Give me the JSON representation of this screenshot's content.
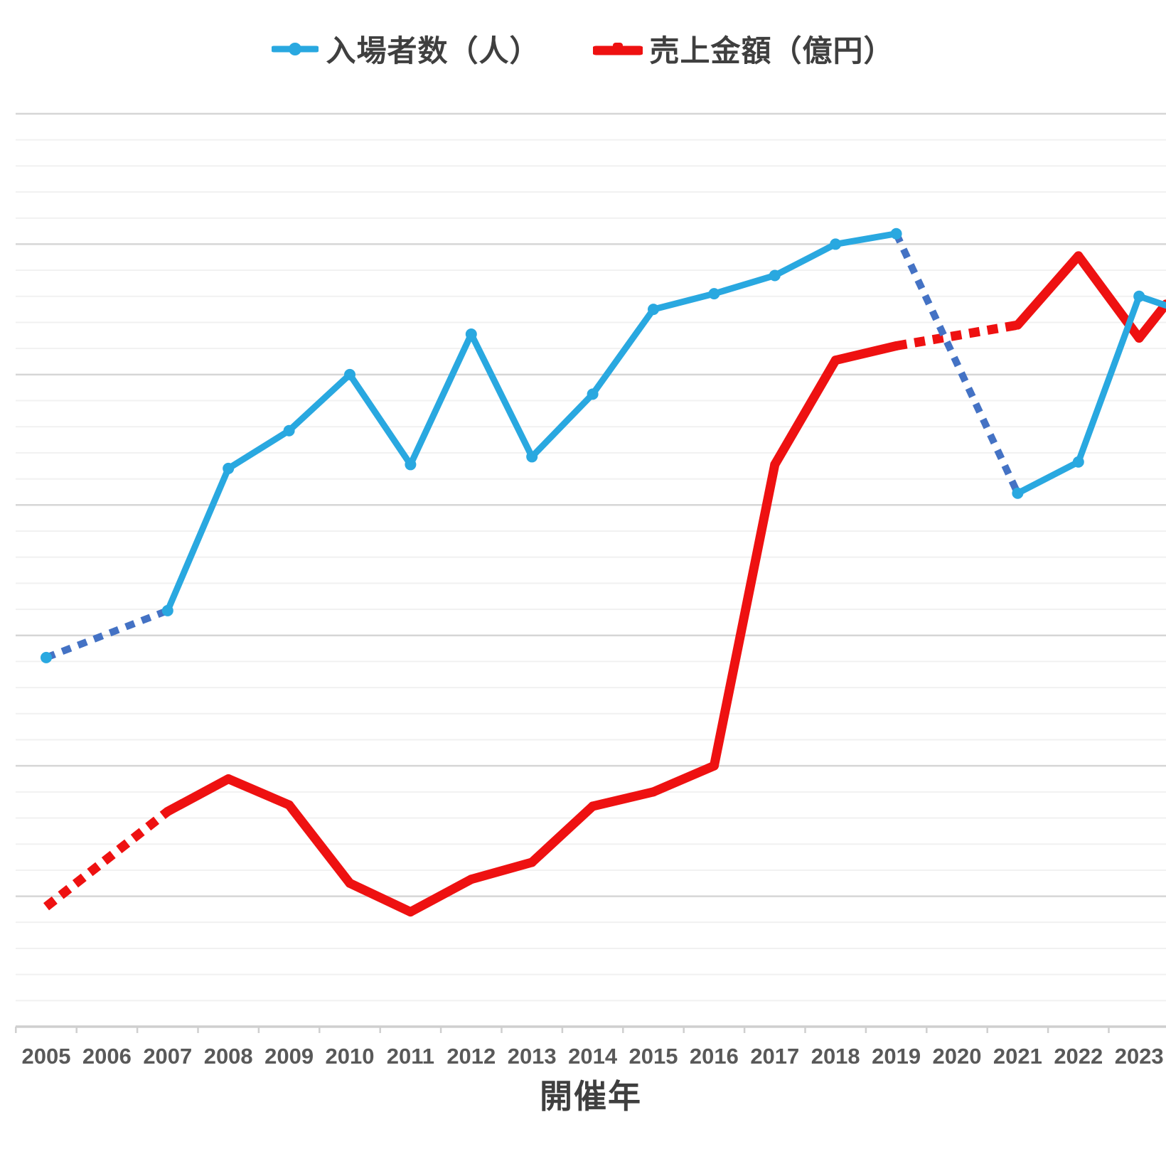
{
  "legend": {
    "items": [
      {
        "label": "入場者数（人）",
        "color": "#29A8E0",
        "marker": "line-with-dot"
      },
      {
        "label": "売上金額（億円）",
        "color": "#EE1111",
        "marker": "thick-line-with-bump"
      }
    ]
  },
  "x_axis": {
    "title": "開催年",
    "tick_labels": [
      "2005",
      "2006",
      "2007",
      "2008",
      "2009",
      "2010",
      "2011",
      "2012",
      "2013",
      "2014",
      "2015",
      "2016",
      "2017",
      "2018",
      "2019",
      "2020",
      "2021",
      "2022",
      "2023"
    ]
  },
  "colors": {
    "blue_solid": "#29A8E0",
    "blue_dashed": "#4472C4",
    "red_solid": "#EE1111",
    "red_dashed": "#EE1111",
    "grid_minor": "#F1F1F1",
    "grid_major": "#D6D6D6",
    "axis_line": "#CFCFCF",
    "tick_label": "#595959",
    "title_text": "#3F3F3F",
    "background": "#FFFFFF"
  },
  "chart_data": {
    "type": "line",
    "title": "",
    "xlabel": "開催年",
    "ylabel": "",
    "legend_position": "top-center",
    "grid": "horizontal, minor every 0.2 unit + darker major every 1.0 unit",
    "y_axis_labels_visible": false,
    "y_units": "major-gridline intervals: baseline axis = 0, top border = 7 (numeric scale not shown in image)",
    "ylim": [
      0,
      7
    ],
    "categories": [
      2005,
      2006,
      2007,
      2008,
      2009,
      2010,
      2011,
      2012,
      2013,
      2014,
      2015,
      2016,
      2017,
      2018,
      2019,
      2020,
      2021,
      2022,
      2023
    ],
    "series": [
      {
        "name": "入場者数（人）",
        "color": "#29A8E0",
        "dashed_color": "#4472C4",
        "markers": true,
        "values": [
          2.83,
          null,
          3.19,
          4.28,
          4.57,
          5.0,
          4.31,
          5.31,
          4.37,
          4.85,
          5.5,
          5.62,
          5.76,
          6.0,
          6.08,
          null,
          4.09,
          4.33,
          5.6
        ],
        "dashed_gap_years": [
          [
            2005,
            2007
          ],
          [
            2019,
            2021
          ]
        ],
        "right_edge_value": 5.53
      },
      {
        "name": "売上金額（億円）",
        "color": "#EE1111",
        "dashed_color": "#EE1111",
        "markers": false,
        "values": [
          0.92,
          null,
          1.65,
          1.9,
          1.7,
          1.1,
          0.88,
          1.13,
          1.26,
          1.69,
          1.8,
          2.0,
          4.31,
          5.11,
          5.22,
          null,
          5.38,
          5.91,
          5.28
        ],
        "dashed_gap_years": [
          [
            2005,
            2007
          ],
          [
            2019,
            2021
          ]
        ],
        "right_edge_value": 5.54
      }
    ],
    "notes": "No data for 2006 and 2020 (event not held): gaps bridged with dashed segments. Both lines continue past 2023 and are clipped at the right edge of the image."
  }
}
